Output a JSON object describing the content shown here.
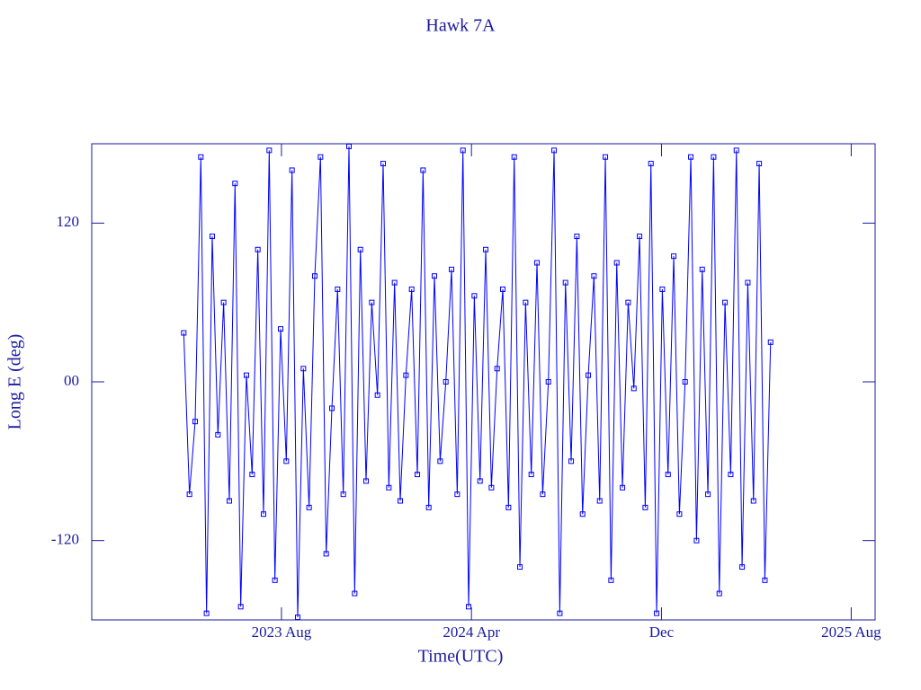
{
  "chart_data": {
    "type": "scatter",
    "title": "Hawk 7A",
    "x_label": "Time(UTC)",
    "y_label": "Long E (deg)",
    "xlim": [
      2022.917,
      2025.667
    ],
    "ylim": [
      -180,
      180
    ],
    "xticks": [
      {
        "value": 2023.583,
        "label": "2023 Aug"
      },
      {
        "value": 2024.25,
        "label": "2024 Apr"
      },
      {
        "value": 2024.917,
        "label": "Dec"
      },
      {
        "value": 2025.583,
        "label": "2025 Aug"
      }
    ],
    "yticks": [
      -120,
      {
        "value": 0,
        "label": "00"
      },
      120
    ],
    "series": [
      {
        "color": "#0000ff",
        "x": [
          2023.24,
          2023.26,
          2023.28,
          2023.3,
          2023.32,
          2023.34,
          2023.36,
          2023.38,
          2023.4,
          2023.42,
          2023.44,
          2023.46,
          2023.48,
          2023.5,
          2023.52,
          2023.54,
          2023.56,
          2023.58,
          2023.6,
          2023.62,
          2023.64,
          2023.66,
          2023.68,
          2023.7,
          2023.72,
          2023.74,
          2023.76,
          2023.78,
          2023.8,
          2023.82,
          2023.84,
          2023.86,
          2023.88,
          2023.9,
          2023.92,
          2023.94,
          2023.96,
          2023.98,
          2024,
          2024.02,
          2024.04,
          2024.06,
          2024.08,
          2024.1,
          2024.12,
          2024.14,
          2024.16,
          2024.18,
          2024.2,
          2024.22,
          2024.24,
          2024.26,
          2024.28,
          2024.3,
          2024.32,
          2024.34,
          2024.36,
          2024.38,
          2024.4,
          2024.42,
          2024.44,
          2024.46,
          2024.48,
          2024.5,
          2024.52,
          2024.54,
          2024.56,
          2024.58,
          2024.6,
          2024.62,
          2024.64,
          2024.66,
          2024.68,
          2024.7,
          2024.72,
          2024.74,
          2024.76,
          2024.78,
          2024.8,
          2024.82,
          2024.84,
          2024.86,
          2024.88,
          2024.9,
          2024.92,
          2024.94,
          2024.96,
          2024.98,
          2025,
          2025.02,
          2025.04,
          2025.06,
          2025.08,
          2025.1,
          2025.12,
          2025.14,
          2025.16,
          2025.18,
          2025.2,
          2025.22,
          2025.24,
          2025.26,
          2025.28,
          2025.3
        ],
        "values": [
          37,
          -85,
          -30,
          170,
          -175,
          110,
          -40,
          60,
          -90,
          150,
          -170,
          5,
          -70,
          100,
          -100,
          175,
          -150,
          40,
          -60,
          160,
          -178,
          10,
          -95,
          80,
          170,
          -130,
          -20,
          70,
          -85,
          178,
          -160,
          100,
          -75,
          60,
          -10,
          165,
          -80,
          75,
          -90,
          5,
          70,
          -70,
          160,
          -95,
          80,
          -60,
          0,
          85,
          -85,
          175,
          -170,
          65,
          -75,
          100,
          -80,
          10,
          70,
          -95,
          170,
          -140,
          60,
          -70,
          90,
          -85,
          0,
          175,
          -175,
          75,
          -60,
          110,
          -100,
          5,
          80,
          -90,
          170,
          -150,
          90,
          -80,
          60,
          -5,
          110,
          -95,
          165,
          -175,
          70,
          -70,
          95,
          -100,
          0,
          170,
          -120,
          85,
          -85,
          170,
          -160,
          60,
          -70,
          175,
          -140,
          75,
          -90,
          165,
          -150,
          30
        ]
      }
    ]
  }
}
